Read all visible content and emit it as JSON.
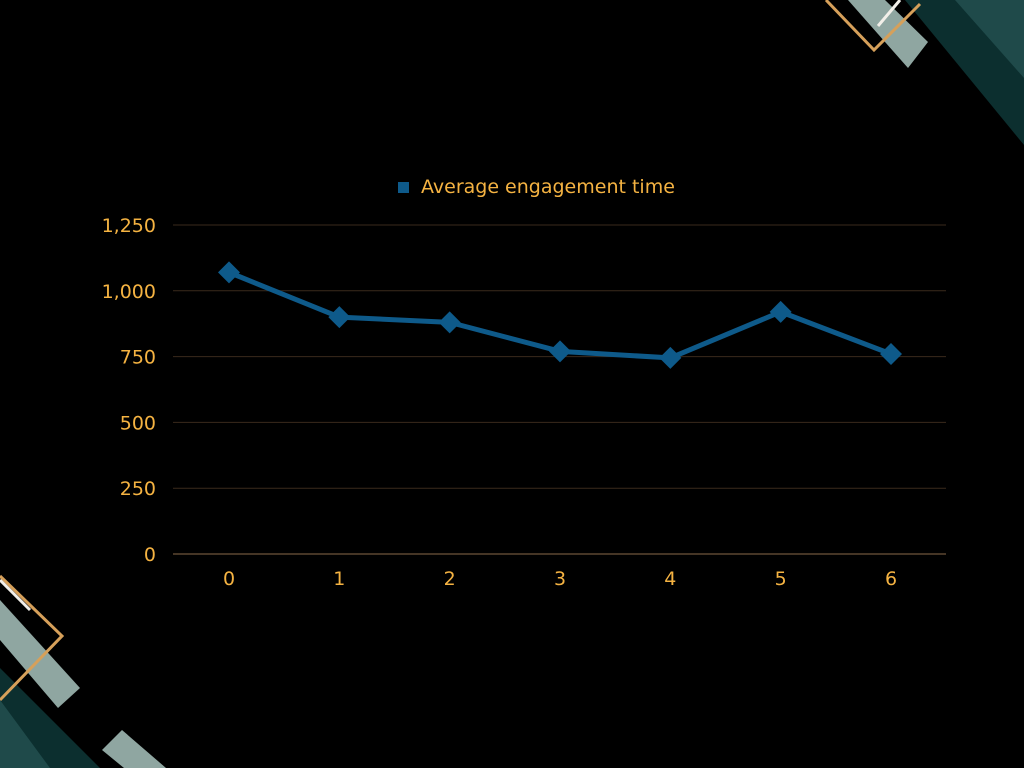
{
  "colors": {
    "background": "#000000",
    "text": "#f5b342",
    "series": "#0e5a8a",
    "gridline": "#3a2a1c",
    "axis": "#8a6a4a",
    "deco_teal_dark": "#0c2f2f",
    "deco_teal": "#1f4a4a",
    "deco_sage": "#8fa6a1",
    "deco_gold": "#d6a05a",
    "deco_white": "#f2efe9"
  },
  "chart_data": {
    "type": "line",
    "legend": {
      "position": "top-center"
    },
    "grid": true,
    "x": [
      0,
      1,
      2,
      3,
      4,
      5,
      6
    ],
    "xlim": [
      0,
      6
    ],
    "ylim": [
      0,
      1250
    ],
    "y_ticks": [
      0,
      250,
      500,
      750,
      1000,
      1250
    ],
    "y_tick_labels": [
      "0",
      "250",
      "500",
      "750",
      "1,000",
      "1,250"
    ],
    "x_tick_labels": [
      "0",
      "1",
      "2",
      "3",
      "4",
      "5",
      "6"
    ],
    "marker": "diamond",
    "series": [
      {
        "name": "Average engagement time",
        "values": [
          1070,
          900,
          880,
          770,
          745,
          920,
          760
        ]
      }
    ]
  }
}
